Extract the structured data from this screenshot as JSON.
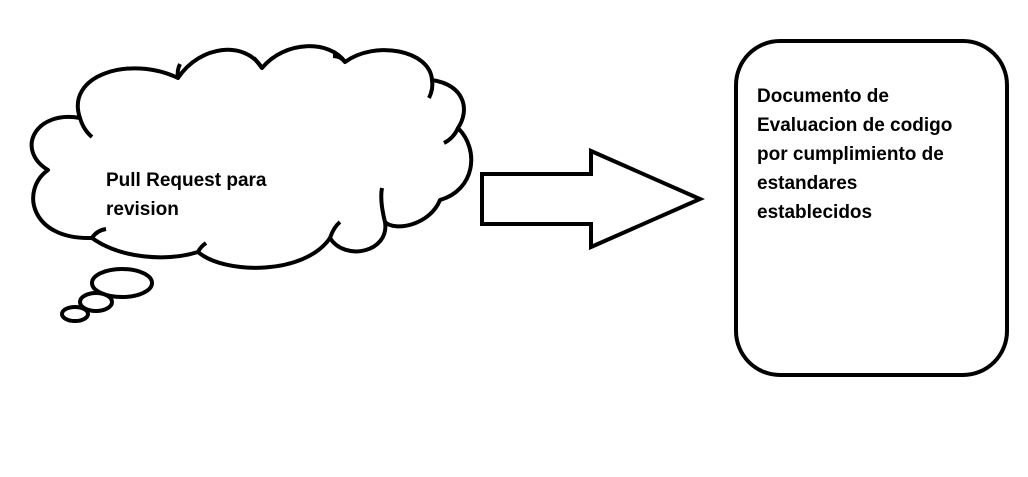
{
  "diagram": {
    "cloud": {
      "lines": [
        "Pull Request para",
        "revision"
      ]
    },
    "document": {
      "lines": [
        "Documento de",
        "Evaluacion de codigo",
        "por cumplimiento de",
        "estandares",
        "establecidos"
      ]
    }
  }
}
